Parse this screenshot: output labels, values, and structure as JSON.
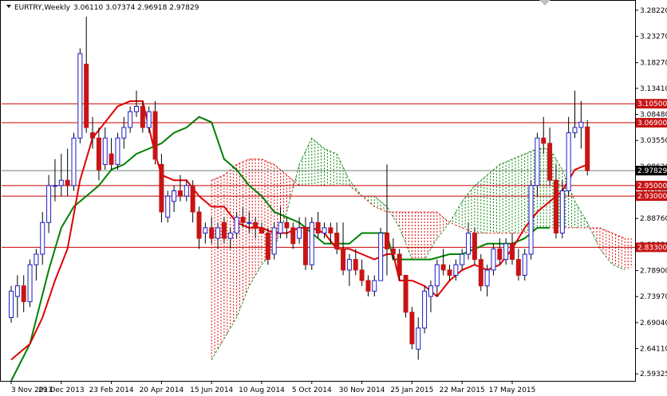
{
  "header": {
    "symbol": "EURTRY,Weekly",
    "ohlc": "3.06110 3.07374 2.96918 2.97829"
  },
  "colors": {
    "background": "#ffffff",
    "frame": "#000000",
    "bull": "#1c1cc8",
    "bear": "#c81414",
    "wick": "#000000",
    "tenkan": "#e00000",
    "kijun": "#008000",
    "cloud_bull": "#008000",
    "cloud_bear": "#dd0000",
    "level_line": "#c80000",
    "current_line": "#708070"
  },
  "chart_data": {
    "type": "candlestick",
    "title": "EURTRY,Weekly",
    "timeframe": "Weekly",
    "y_axis_ticks": [
      "3.28220",
      "3.23270",
      "3.18270",
      "3.13410",
      "3.08480",
      "3.03550",
      "2.98620",
      "2.93690",
      "2.88760",
      "2.83830",
      "2.78900",
      "2.73970",
      "2.69040",
      "2.64110",
      "2.59325"
    ],
    "ylim": [
      2.58,
      3.3
    ],
    "x_axis_labels": [
      "3 Nov 2013",
      "29 Dec 2013",
      "23 Feb 2014",
      "20 Apr 2014",
      "15 Jun 2014",
      "10 Aug 2014",
      "5 Oct 2014",
      "30 Nov 2014",
      "25 Jan 2015",
      "22 Mar 2015",
      "17 May 2015"
    ],
    "x_label_weeks": [
      0,
      8,
      16,
      24,
      32,
      40,
      48,
      56,
      64,
      72,
      80
    ],
    "horizontal_levels": [
      {
        "value": 3.105,
        "label": "3.10500"
      },
      {
        "value": 3.069,
        "label": "3.06900"
      },
      {
        "value": 2.95,
        "label": "2.95000"
      },
      {
        "value": 2.93,
        "label": "2.93000"
      },
      {
        "value": 2.833,
        "label": "2.83300"
      }
    ],
    "current_price": {
      "value": 2.97829,
      "label": "2.97829"
    },
    "candles": [
      {
        "o": 2.7,
        "h": 2.76,
        "l": 2.69,
        "c": 2.75
      },
      {
        "o": 2.74,
        "h": 2.78,
        "l": 2.7,
        "c": 2.76
      },
      {
        "o": 2.76,
        "h": 2.78,
        "l": 2.71,
        "c": 2.73
      },
      {
        "o": 2.73,
        "h": 2.81,
        "l": 2.72,
        "c": 2.8
      },
      {
        "o": 2.8,
        "h": 2.83,
        "l": 2.77,
        "c": 2.82
      },
      {
        "o": 2.82,
        "h": 2.9,
        "l": 2.8,
        "c": 2.88
      },
      {
        "o": 2.88,
        "h": 2.97,
        "l": 2.86,
        "c": 2.95
      },
      {
        "o": 2.95,
        "h": 3.0,
        "l": 2.92,
        "c": 2.95
      },
      {
        "o": 2.95,
        "h": 3.01,
        "l": 2.93,
        "c": 2.96
      },
      {
        "o": 2.96,
        "h": 3.02,
        "l": 2.93,
        "c": 2.95
      },
      {
        "o": 2.95,
        "h": 3.05,
        "l": 2.94,
        "c": 3.04
      },
      {
        "o": 3.04,
        "h": 3.21,
        "l": 3.03,
        "c": 3.2
      },
      {
        "o": 3.18,
        "h": 3.27,
        "l": 3.05,
        "c": 3.06
      },
      {
        "o": 3.05,
        "h": 3.08,
        "l": 3.02,
        "c": 3.04
      },
      {
        "o": 3.04,
        "h": 3.06,
        "l": 2.96,
        "c": 2.98
      },
      {
        "o": 2.99,
        "h": 3.06,
        "l": 2.98,
        "c": 3.04
      },
      {
        "o": 3.01,
        "h": 3.04,
        "l": 2.98,
        "c": 2.99
      },
      {
        "o": 2.99,
        "h": 3.05,
        "l": 2.98,
        "c": 3.04
      },
      {
        "o": 3.04,
        "h": 3.08,
        "l": 3.02,
        "c": 3.06
      },
      {
        "o": 3.06,
        "h": 3.1,
        "l": 3.05,
        "c": 3.09
      },
      {
        "o": 3.09,
        "h": 3.13,
        "l": 3.08,
        "c": 3.1
      },
      {
        "o": 3.1,
        "h": 3.11,
        "l": 3.05,
        "c": 3.06
      },
      {
        "o": 3.06,
        "h": 3.1,
        "l": 3.05,
        "c": 3.09
      },
      {
        "o": 3.09,
        "h": 3.11,
        "l": 2.99,
        "c": 3.0
      },
      {
        "o": 2.99,
        "h": 3.01,
        "l": 2.88,
        "c": 2.9
      },
      {
        "o": 2.89,
        "h": 2.94,
        "l": 2.88,
        "c": 2.93
      },
      {
        "o": 2.92,
        "h": 2.95,
        "l": 2.9,
        "c": 2.94
      },
      {
        "o": 2.94,
        "h": 2.97,
        "l": 2.92,
        "c": 2.93
      },
      {
        "o": 2.93,
        "h": 2.96,
        "l": 2.92,
        "c": 2.95
      },
      {
        "o": 2.95,
        "h": 2.96,
        "l": 2.88,
        "c": 2.9
      },
      {
        "o": 2.9,
        "h": 2.91,
        "l": 2.83,
        "c": 2.85
      },
      {
        "o": 2.86,
        "h": 2.88,
        "l": 2.84,
        "c": 2.87
      },
      {
        "o": 2.87,
        "h": 2.89,
        "l": 2.84,
        "c": 2.85
      },
      {
        "o": 2.85,
        "h": 2.88,
        "l": 2.83,
        "c": 2.87
      },
      {
        "o": 2.88,
        "h": 2.89,
        "l": 2.84,
        "c": 2.85
      },
      {
        "o": 2.85,
        "h": 2.87,
        "l": 2.83,
        "c": 2.86
      },
      {
        "o": 2.86,
        "h": 2.9,
        "l": 2.85,
        "c": 2.89
      },
      {
        "o": 2.89,
        "h": 2.91,
        "l": 2.87,
        "c": 2.88
      },
      {
        "o": 2.88,
        "h": 2.9,
        "l": 2.86,
        "c": 2.88
      },
      {
        "o": 2.88,
        "h": 2.89,
        "l": 2.85,
        "c": 2.87
      },
      {
        "o": 2.87,
        "h": 2.88,
        "l": 2.86,
        "c": 2.86
      },
      {
        "o": 2.86,
        "h": 2.87,
        "l": 2.8,
        "c": 2.81
      },
      {
        "o": 2.82,
        "h": 2.88,
        "l": 2.81,
        "c": 2.87
      },
      {
        "o": 2.86,
        "h": 2.91,
        "l": 2.85,
        "c": 2.88
      },
      {
        "o": 2.88,
        "h": 2.89,
        "l": 2.85,
        "c": 2.87
      },
      {
        "o": 2.87,
        "h": 2.88,
        "l": 2.83,
        "c": 2.84
      },
      {
        "o": 2.85,
        "h": 2.89,
        "l": 2.84,
        "c": 2.87
      },
      {
        "o": 2.87,
        "h": 2.89,
        "l": 2.79,
        "c": 2.8
      },
      {
        "o": 2.8,
        "h": 2.89,
        "l": 2.79,
        "c": 2.88
      },
      {
        "o": 2.88,
        "h": 2.9,
        "l": 2.85,
        "c": 2.86
      },
      {
        "o": 2.86,
        "h": 2.88,
        "l": 2.85,
        "c": 2.87
      },
      {
        "o": 2.87,
        "h": 2.88,
        "l": 2.84,
        "c": 2.86
      },
      {
        "o": 2.86,
        "h": 2.88,
        "l": 2.82,
        "c": 2.83
      },
      {
        "o": 2.83,
        "h": 2.88,
        "l": 2.78,
        "c": 2.79
      },
      {
        "o": 2.79,
        "h": 2.82,
        "l": 2.76,
        "c": 2.81
      },
      {
        "o": 2.81,
        "h": 2.83,
        "l": 2.78,
        "c": 2.79
      },
      {
        "o": 2.79,
        "h": 2.81,
        "l": 2.76,
        "c": 2.77
      },
      {
        "o": 2.77,
        "h": 2.78,
        "l": 2.74,
        "c": 2.75
      },
      {
        "o": 2.75,
        "h": 2.78,
        "l": 2.74,
        "c": 2.77
      },
      {
        "o": 2.77,
        "h": 2.87,
        "l": 2.77,
        "c": 2.86
      },
      {
        "o": 2.86,
        "h": 2.99,
        "l": 2.78,
        "c": 2.83
      },
      {
        "o": 2.83,
        "h": 2.85,
        "l": 2.81,
        "c": 2.82
      },
      {
        "o": 2.82,
        "h": 2.83,
        "l": 2.77,
        "c": 2.78
      },
      {
        "o": 2.78,
        "h": 2.78,
        "l": 2.7,
        "c": 2.71
      },
      {
        "o": 2.71,
        "h": 2.72,
        "l": 2.64,
        "c": 2.65
      },
      {
        "o": 2.64,
        "h": 2.7,
        "l": 2.62,
        "c": 2.68
      },
      {
        "o": 2.68,
        "h": 2.76,
        "l": 2.67,
        "c": 2.75
      },
      {
        "o": 2.74,
        "h": 2.77,
        "l": 2.71,
        "c": 2.76
      },
      {
        "o": 2.76,
        "h": 2.81,
        "l": 2.74,
        "c": 2.8
      },
      {
        "o": 2.8,
        "h": 2.83,
        "l": 2.78,
        "c": 2.79
      },
      {
        "o": 2.79,
        "h": 2.8,
        "l": 2.77,
        "c": 2.78
      },
      {
        "o": 2.78,
        "h": 2.81,
        "l": 2.77,
        "c": 2.8
      },
      {
        "o": 2.8,
        "h": 2.83,
        "l": 2.79,
        "c": 2.82
      },
      {
        "o": 2.82,
        "h": 2.88,
        "l": 2.81,
        "c": 2.86
      },
      {
        "o": 2.86,
        "h": 2.87,
        "l": 2.8,
        "c": 2.81
      },
      {
        "o": 2.81,
        "h": 2.82,
        "l": 2.75,
        "c": 2.76
      },
      {
        "o": 2.76,
        "h": 2.8,
        "l": 2.74,
        "c": 2.79
      },
      {
        "o": 2.79,
        "h": 2.84,
        "l": 2.78,
        "c": 2.83
      },
      {
        "o": 2.83,
        "h": 2.85,
        "l": 2.8,
        "c": 2.81
      },
      {
        "o": 2.81,
        "h": 2.85,
        "l": 2.8,
        "c": 2.84
      },
      {
        "o": 2.84,
        "h": 2.86,
        "l": 2.8,
        "c": 2.81
      },
      {
        "o": 2.81,
        "h": 2.83,
        "l": 2.77,
        "c": 2.78
      },
      {
        "o": 2.78,
        "h": 2.83,
        "l": 2.77,
        "c": 2.82
      },
      {
        "o": 2.82,
        "h": 2.96,
        "l": 2.81,
        "c": 2.95
      },
      {
        "o": 2.95,
        "h": 3.05,
        "l": 2.93,
        "c": 3.04
      },
      {
        "o": 3.04,
        "h": 3.08,
        "l": 3.01,
        "c": 3.03
      },
      {
        "o": 3.03,
        "h": 3.06,
        "l": 2.95,
        "c": 2.96
      },
      {
        "o": 2.96,
        "h": 2.99,
        "l": 2.85,
        "c": 2.86
      },
      {
        "o": 2.86,
        "h": 2.96,
        "l": 2.85,
        "c": 2.94
      },
      {
        "o": 2.94,
        "h": 3.08,
        "l": 2.93,
        "c": 3.05
      },
      {
        "o": 3.05,
        "h": 3.13,
        "l": 3.04,
        "c": 3.06
      },
      {
        "o": 3.06,
        "h": 3.11,
        "l": 3.02,
        "c": 3.07
      },
      {
        "o": 3.0611,
        "h": 3.07374,
        "l": 2.96918,
        "c": 2.97829
      }
    ],
    "tenkan_sen": [
      [
        0,
        2.62
      ],
      [
        3,
        2.65
      ],
      [
        5,
        2.7
      ],
      [
        7,
        2.77
      ],
      [
        9,
        2.83
      ],
      [
        11,
        2.96
      ],
      [
        13,
        3.04
      ],
      [
        15,
        3.07
      ],
      [
        17,
        3.1
      ],
      [
        19,
        3.11
      ],
      [
        21,
        3.11
      ],
      [
        23,
        3.01
      ],
      [
        24,
        2.97
      ],
      [
        26,
        2.96
      ],
      [
        28,
        2.96
      ],
      [
        30,
        2.93
      ],
      [
        32,
        2.91
      ],
      [
        34,
        2.91
      ],
      [
        36,
        2.88
      ],
      [
        38,
        2.87
      ],
      [
        40,
        2.87
      ],
      [
        42,
        2.86
      ],
      [
        44,
        2.86
      ],
      [
        46,
        2.87
      ],
      [
        48,
        2.87
      ],
      [
        50,
        2.86
      ],
      [
        52,
        2.83
      ],
      [
        54,
        2.83
      ],
      [
        56,
        2.82
      ],
      [
        58,
        2.81
      ],
      [
        60,
        2.82
      ],
      [
        61,
        2.82
      ],
      [
        62,
        2.77
      ],
      [
        64,
        2.77
      ],
      [
        66,
        2.76
      ],
      [
        68,
        2.74
      ],
      [
        70,
        2.77
      ],
      [
        72,
        2.79
      ],
      [
        74,
        2.8
      ],
      [
        76,
        2.79
      ],
      [
        78,
        2.8
      ],
      [
        80,
        2.83
      ],
      [
        82,
        2.87
      ],
      [
        84,
        2.9
      ],
      [
        86,
        2.92
      ],
      [
        88,
        2.94
      ],
      [
        90,
        2.98
      ],
      [
        92,
        2.99
      ]
    ],
    "kijun_sen": [
      [
        0,
        2.58
      ],
      [
        3,
        2.65
      ],
      [
        6,
        2.79
      ],
      [
        8,
        2.87
      ],
      [
        10,
        2.91
      ],
      [
        12,
        2.93
      ],
      [
        14,
        2.95
      ],
      [
        16,
        2.98
      ],
      [
        18,
        2.99
      ],
      [
        20,
        3.01
      ],
      [
        22,
        3.02
      ],
      [
        24,
        3.03
      ],
      [
        26,
        3.05
      ],
      [
        28,
        3.06
      ],
      [
        30,
        3.08
      ],
      [
        32,
        3.07
      ],
      [
        34,
        3.0
      ],
      [
        36,
        2.98
      ],
      [
        38,
        2.95
      ],
      [
        40,
        2.93
      ],
      [
        42,
        2.9
      ],
      [
        44,
        2.89
      ],
      [
        46,
        2.88
      ],
      [
        48,
        2.86
      ],
      [
        50,
        2.84
      ],
      [
        52,
        2.84
      ],
      [
        54,
        2.84
      ],
      [
        56,
        2.86
      ],
      [
        58,
        2.86
      ],
      [
        60,
        2.86
      ],
      [
        61,
        2.81
      ],
      [
        63,
        2.81
      ],
      [
        65,
        2.81
      ],
      [
        67,
        2.81
      ],
      [
        70,
        2.82
      ],
      [
        72,
        2.82
      ],
      [
        74,
        2.83
      ],
      [
        76,
        2.84
      ],
      [
        78,
        2.84
      ],
      [
        80,
        2.84
      ],
      [
        82,
        2.85
      ],
      [
        84,
        2.87
      ],
      [
        86,
        2.87
      ]
    ],
    "cloud_senkou_a": [
      [
        32,
        2.62
      ],
      [
        34,
        2.66
      ],
      [
        36,
        2.7
      ],
      [
        38,
        2.76
      ],
      [
        40,
        2.8
      ],
      [
        42,
        2.83
      ],
      [
        44,
        2.9
      ],
      [
        46,
        2.99
      ],
      [
        48,
        3.04
      ],
      [
        50,
        3.02
      ],
      [
        52,
        3.01
      ],
      [
        54,
        2.96
      ],
      [
        56,
        2.93
      ],
      [
        58,
        2.93
      ],
      [
        60,
        2.91
      ],
      [
        62,
        2.87
      ],
      [
        64,
        2.81
      ],
      [
        66,
        2.81
      ],
      [
        68,
        2.85
      ],
      [
        70,
        2.88
      ],
      [
        72,
        2.92
      ],
      [
        74,
        2.95
      ],
      [
        76,
        2.97
      ],
      [
        78,
        2.99
      ],
      [
        80,
        3.0
      ],
      [
        82,
        3.01
      ],
      [
        84,
        3.02
      ],
      [
        86,
        3.02
      ],
      [
        88,
        2.98
      ],
      [
        90,
        2.92
      ],
      [
        92,
        2.88
      ],
      [
        94,
        2.83
      ],
      [
        96,
        2.8
      ],
      [
        98,
        2.79
      ],
      [
        100,
        2.8
      ]
    ],
    "cloud_senkou_b": [
      [
        32,
        2.96
      ],
      [
        34,
        2.97
      ],
      [
        36,
        2.99
      ],
      [
        38,
        3.0
      ],
      [
        40,
        3.0
      ],
      [
        42,
        2.99
      ],
      [
        44,
        2.97
      ],
      [
        46,
        2.95
      ],
      [
        48,
        2.95
      ],
      [
        50,
        2.95
      ],
      [
        52,
        2.95
      ],
      [
        54,
        2.95
      ],
      [
        56,
        2.93
      ],
      [
        58,
        2.91
      ],
      [
        60,
        2.9
      ],
      [
        62,
        2.9
      ],
      [
        64,
        2.9
      ],
      [
        66,
        2.9
      ],
      [
        68,
        2.9
      ],
      [
        70,
        2.88
      ],
      [
        72,
        2.87
      ],
      [
        74,
        2.86
      ],
      [
        76,
        2.86
      ],
      [
        78,
        2.86
      ],
      [
        80,
        2.86
      ],
      [
        82,
        2.86
      ],
      [
        84,
        2.87
      ],
      [
        86,
        2.87
      ],
      [
        88,
        2.87
      ],
      [
        90,
        2.87
      ],
      [
        92,
        2.87
      ],
      [
        94,
        2.87
      ],
      [
        96,
        2.86
      ],
      [
        98,
        2.85
      ],
      [
        100,
        2.85
      ]
    ]
  }
}
